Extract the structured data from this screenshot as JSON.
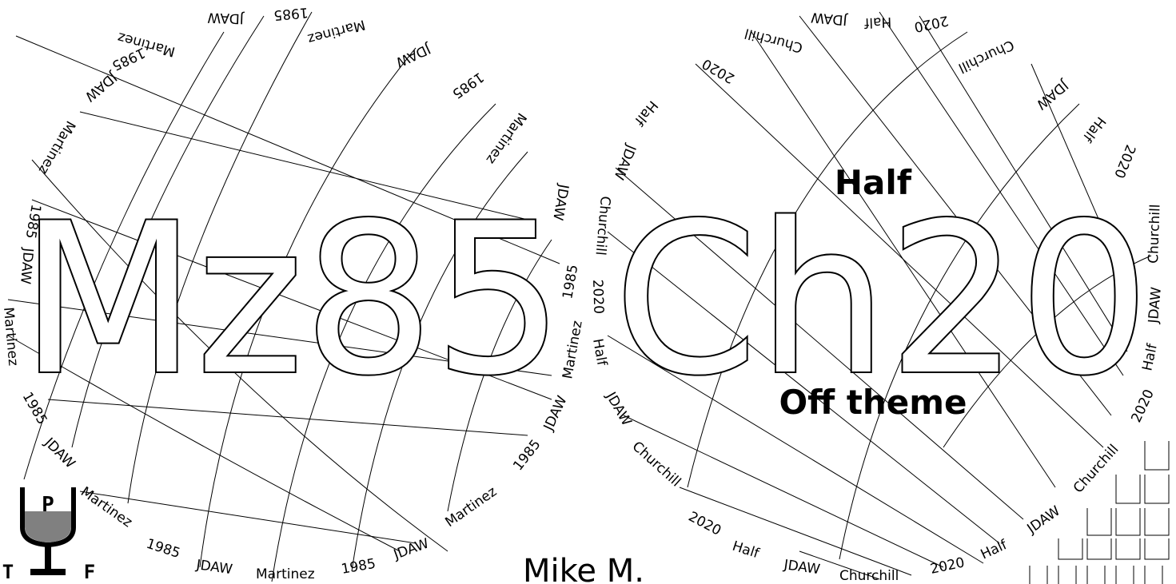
{
  "left_disc": {
    "code": "Mz85",
    "ring_words": [
      "1985",
      "JDAW",
      "Martinez"
    ]
  },
  "right_disc": {
    "code": "Ch20",
    "top_label": "Half",
    "bottom_label": "Off theme",
    "ring_words": [
      "2020",
      "Half",
      "JDAW",
      "Churchill"
    ]
  },
  "author": "Mike M.",
  "logo": {
    "letters": [
      "P",
      "T",
      "F"
    ],
    "glass_color": "#808080"
  },
  "corner_icon": "grid-squares-icon"
}
